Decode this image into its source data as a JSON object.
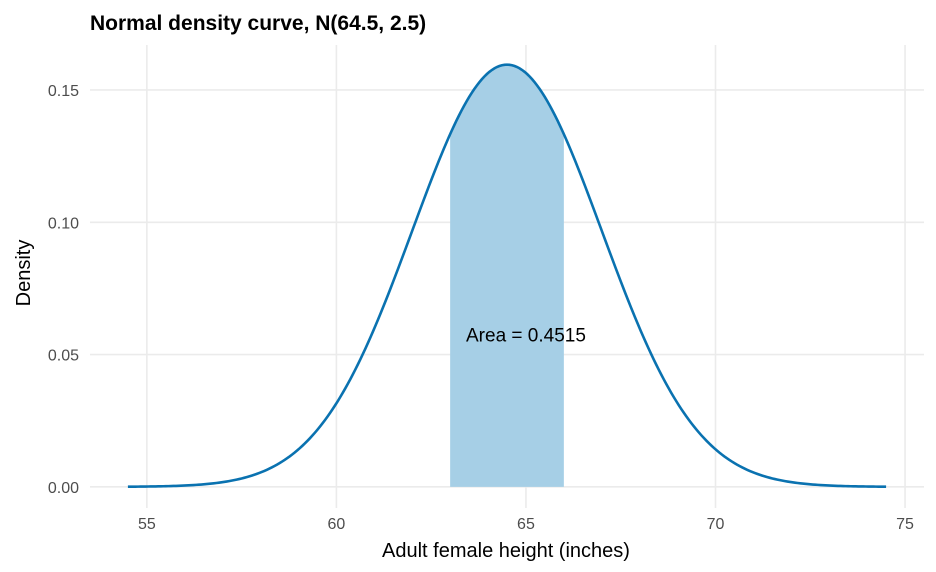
{
  "chart_data": {
    "type": "area",
    "title": "Normal density curve, N(64.5, 2.5)",
    "xlabel": "Adult female height (inches)",
    "ylabel": "Density",
    "distribution": {
      "mean": 64.5,
      "sd": 2.5
    },
    "xlim": [
      53.5,
      75.5
    ],
    "ylim": [
      -0.008,
      0.167
    ],
    "x_ticks": [
      {
        "value": 55,
        "label": "55"
      },
      {
        "value": 60,
        "label": "60"
      },
      {
        "value": 65,
        "label": "65"
      },
      {
        "value": 70,
        "label": "70"
      },
      {
        "value": 75,
        "label": "75"
      }
    ],
    "y_ticks": [
      {
        "value": 0.0,
        "label": "0.00"
      },
      {
        "value": 0.05,
        "label": "0.05"
      },
      {
        "value": 0.1,
        "label": "0.10"
      },
      {
        "value": 0.15,
        "label": "0.15"
      }
    ],
    "curve_range": [
      54.5,
      74.5
    ],
    "shaded_region": {
      "from": 63,
      "to": 66,
      "area": 0.4515
    },
    "annotation": {
      "text": "Area = 0.4515",
      "x": 65,
      "y": 0.055
    },
    "grid": true,
    "colors": {
      "line": "#0a72b0",
      "fill": "#a6cfe6",
      "grid": "#ebebeb"
    }
  }
}
